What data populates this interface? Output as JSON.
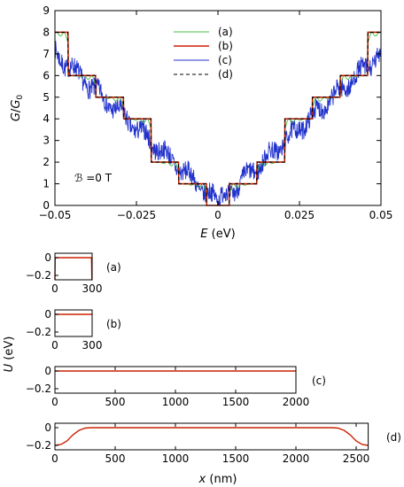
{
  "chart_data": [
    {
      "type": "line",
      "xlabel": "E (eV)",
      "ylabel": "G/G0",
      "xlim": [
        -0.05,
        0.05
      ],
      "ylim": [
        0,
        9
      ],
      "xticks": [
        "−0.05",
        "−0.025",
        "0",
        "0.025",
        "0.05"
      ],
      "yticks": [
        "0",
        "1",
        "2",
        "3",
        "4",
        "5",
        "6",
        "7",
        "8",
        "9"
      ],
      "annotation": "ℬ =0 T",
      "legend_position": "top-center",
      "step_thresholds_eV": [
        0.0035,
        0.012,
        0.0205,
        0.029,
        0.0375,
        0.046
      ],
      "step_values": [
        0,
        1,
        2,
        4,
        5,
        6,
        8
      ],
      "series": [
        {
          "name": "(a)",
          "color": "#44bb44",
          "style": "solid",
          "shape": "oscillating steps"
        },
        {
          "name": "(b)",
          "color": "#cc2200",
          "style": "solid",
          "shape": "quantized steps"
        },
        {
          "name": "(c)",
          "color": "#2233cc",
          "style": "solid",
          "shape": "noisy, approx 140·|E| + 0.2"
        },
        {
          "name": "(d)",
          "color": "#000000",
          "style": "dashed",
          "shape": "quantized steps"
        }
      ],
      "samples": {
        "E": [
          -0.05,
          -0.046,
          -0.04,
          -0.0375,
          -0.03,
          -0.029,
          -0.025,
          -0.0205,
          -0.015,
          -0.012,
          -0.008,
          -0.0035,
          0,
          0.0035,
          0.008,
          0.012,
          0.015,
          0.0205,
          0.025,
          0.029,
          0.03,
          0.0375,
          0.04,
          0.046,
          0.05
        ],
        "b": [
          8,
          8,
          6,
          6,
          5,
          5,
          4,
          4,
          2,
          2,
          1,
          1,
          0,
          1,
          1,
          2,
          2,
          4,
          4,
          5,
          5,
          6,
          6,
          8,
          8
        ],
        "c_trend": [
          7.2,
          6.6,
          5.8,
          5.45,
          4.4,
          4.25,
          3.7,
          3.05,
          2.3,
          1.9,
          1.3,
          0.7,
          0.15,
          0.7,
          1.3,
          1.9,
          2.3,
          3.05,
          3.7,
          4.25,
          4.4,
          5.45,
          5.8,
          6.6,
          7.2
        ]
      }
    },
    {
      "type": "line",
      "tag": "(a)",
      "xlim": [
        0,
        300
      ],
      "ylim": [
        -0.25,
        0.05
      ],
      "xticks": [
        "0",
        "300"
      ],
      "yticks": [
        "0",
        "−0.2"
      ],
      "profile": {
        "x": [
          0,
          2,
          295,
          298,
          300
        ],
        "U": [
          -0.25,
          0,
          0,
          -0.25,
          -0.25
        ]
      }
    },
    {
      "type": "line",
      "tag": "(b)",
      "xlim": [
        0,
        300
      ],
      "ylim": [
        -0.25,
        0.05
      ],
      "xticks": [
        "0",
        "300"
      ],
      "yticks": [
        "0",
        "−0.2"
      ],
      "profile": {
        "x": [
          0,
          300
        ],
        "U": [
          0,
          0
        ]
      }
    },
    {
      "type": "line",
      "tag": "(c)",
      "xlim": [
        0,
        2000
      ],
      "ylim": [
        -0.25,
        0.05
      ],
      "xticks": [
        "0",
        "500",
        "1000",
        "1500",
        "2000"
      ],
      "yticks": [
        "0",
        "−0.2"
      ],
      "profile": {
        "x": [
          0,
          2000
        ],
        "U": [
          0,
          0
        ]
      }
    },
    {
      "type": "line",
      "tag": "(d)",
      "xlim": [
        0,
        2600
      ],
      "ylim": [
        -0.25,
        0.05
      ],
      "xticks": [
        "0",
        "500",
        "1000",
        "1500",
        "2000",
        "2500"
      ],
      "yticks": [
        "0",
        "−0.2"
      ],
      "xlabel": "x (nm)",
      "profile": {
        "x": [
          0,
          50,
          100,
          150,
          200,
          250,
          300,
          2300,
          2350,
          2400,
          2450,
          2500,
          2550,
          2600
        ],
        "U": [
          -0.2,
          -0.19,
          -0.15,
          -0.08,
          -0.03,
          -0.005,
          0,
          0,
          -0.005,
          -0.03,
          -0.08,
          -0.15,
          -0.19,
          -0.2
        ]
      }
    }
  ],
  "shared_ylabel": "U (eV)",
  "colors": {
    "a": "#44bb44",
    "b": "#cc2200",
    "c": "#2233cc",
    "d": "#000000"
  }
}
